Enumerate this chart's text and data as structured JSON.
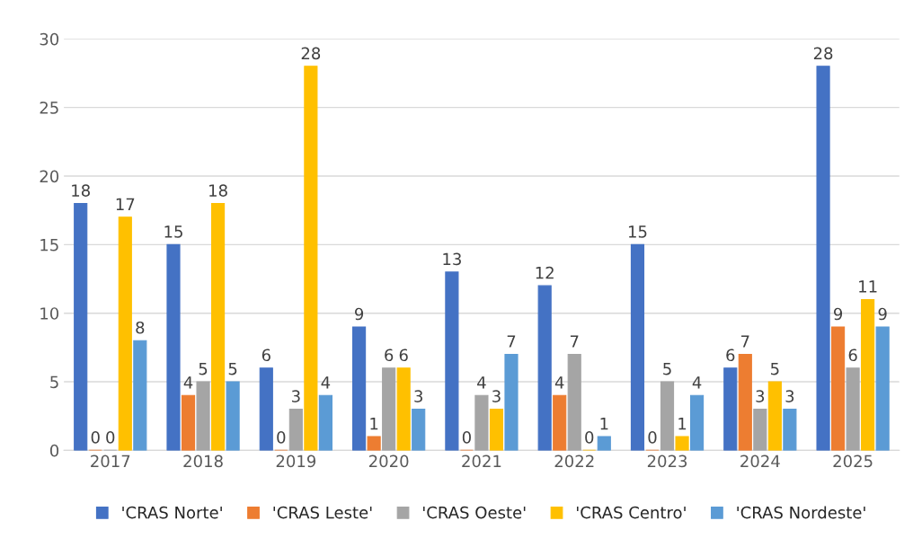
{
  "chart_data": {
    "type": "bar",
    "categories": [
      "2017",
      "2018",
      "2019",
      "2020",
      "2021",
      "2022",
      "2023",
      "2024",
      "2025"
    ],
    "series": [
      {
        "name": "'CRAS Norte'",
        "color": "#4472c4",
        "values": [
          18,
          15,
          6,
          9,
          13,
          12,
          15,
          6,
          28
        ]
      },
      {
        "name": "'CRAS Leste'",
        "color": "#ed7d31",
        "values": [
          0,
          4,
          0,
          1,
          0,
          4,
          0,
          7,
          9
        ]
      },
      {
        "name": "'CRAS Oeste'",
        "color": "#a5a5a5",
        "values": [
          0,
          5,
          3,
          6,
          4,
          7,
          5,
          3,
          6
        ]
      },
      {
        "name": "'CRAS Centro'",
        "color": "#ffc000",
        "values": [
          17,
          18,
          28,
          6,
          3,
          0,
          1,
          5,
          11
        ]
      },
      {
        "name": "'CRAS Nordeste'",
        "color": "#5b9bd5",
        "values": [
          8,
          5,
          4,
          3,
          7,
          1,
          4,
          3,
          9
        ]
      }
    ],
    "ylim": [
      0,
      30
    ],
    "yticks": [
      0,
      5,
      10,
      15,
      20,
      25,
      30
    ],
    "grid": "y",
    "legend": "bottom",
    "data_labels": true
  }
}
